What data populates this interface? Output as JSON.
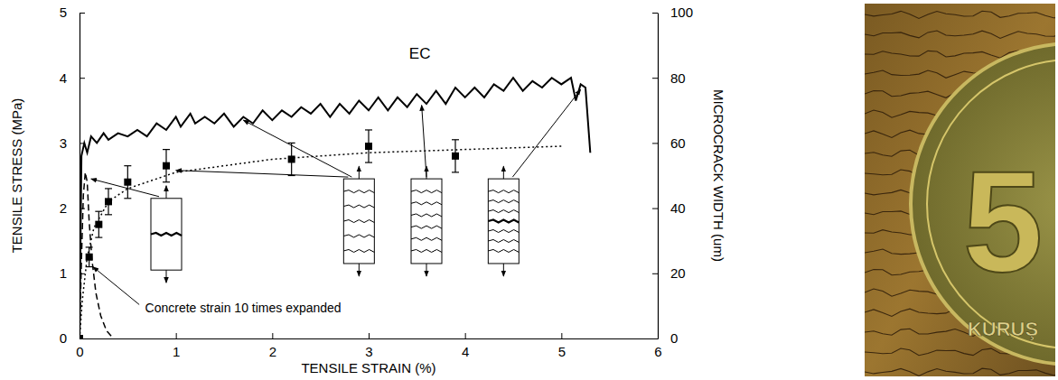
{
  "chart_data": {
    "type": "line",
    "x_label": "TENSILE STRAIN (%)",
    "y_label": "TENSILE STRESS (MPa)",
    "y2_label": "MICROCRACK WIDTH (um)",
    "xlim": [
      0,
      6
    ],
    "xticks": [
      0,
      1,
      2,
      3,
      4,
      5,
      6
    ],
    "ylim": [
      0,
      5
    ],
    "yticks": [
      0,
      1,
      2,
      3,
      4,
      5
    ],
    "y2lim": [
      0,
      100
    ],
    "y2ticks": [
      0,
      20,
      40,
      60,
      80,
      100
    ],
    "grid": false,
    "annotations": [
      "Concrete strain 10 times expanded"
    ],
    "series": [
      {
        "name": "EC",
        "type": "line",
        "color": "#000000",
        "line_style": "solid",
        "x": [
          0,
          0.02,
          0.05,
          0.08,
          0.12,
          0.18,
          0.25,
          0.3,
          0.4,
          0.5,
          0.6,
          0.7,
          0.8,
          0.9,
          1.0,
          1.05,
          1.15,
          1.2,
          1.3,
          1.4,
          1.5,
          1.6,
          1.7,
          1.8,
          1.9,
          2.0,
          2.1,
          2.2,
          2.3,
          2.4,
          2.5,
          2.6,
          2.7,
          2.8,
          2.9,
          3.0,
          3.1,
          3.2,
          3.3,
          3.4,
          3.5,
          3.6,
          3.7,
          3.8,
          3.9,
          4.0,
          4.1,
          4.2,
          4.3,
          4.4,
          4.5,
          4.6,
          4.7,
          4.8,
          4.9,
          5.0,
          5.1,
          5.15,
          5.2,
          5.25,
          5.3
        ],
        "values": [
          0,
          2.8,
          3.0,
          2.85,
          3.1,
          3.0,
          3.15,
          3.05,
          3.15,
          3.1,
          3.2,
          3.1,
          3.3,
          3.2,
          3.4,
          3.25,
          3.45,
          3.3,
          3.4,
          3.3,
          3.45,
          3.25,
          3.4,
          3.3,
          3.5,
          3.35,
          3.5,
          3.4,
          3.55,
          3.45,
          3.6,
          3.4,
          3.6,
          3.45,
          3.65,
          3.5,
          3.7,
          3.5,
          3.7,
          3.55,
          3.75,
          3.6,
          3.8,
          3.6,
          3.85,
          3.7,
          3.85,
          3.7,
          3.9,
          3.8,
          4.0,
          3.8,
          3.95,
          3.85,
          4.0,
          3.9,
          4.0,
          3.65,
          3.9,
          3.85,
          2.85
        ]
      },
      {
        "type": "line",
        "color": "#000000",
        "line_style": "dashed",
        "x": [
          0,
          0.02,
          0.04,
          0.06,
          0.08,
          0.1,
          0.13,
          0.17,
          0.22,
          0.28,
          0.35
        ],
        "values": [
          0,
          1.2,
          2.2,
          2.55,
          2.4,
          1.8,
          1.2,
          0.7,
          0.35,
          0.12,
          0
        ]
      },
      {
        "type": "scatter",
        "axis": "y2",
        "color": "#000000",
        "marker": "square",
        "x": [
          0,
          0.1,
          0.2,
          0.3,
          0.5,
          0.9,
          2.2,
          3.0,
          3.9
        ],
        "values": [
          0,
          25,
          35,
          42,
          48,
          53,
          55,
          59,
          56
        ],
        "errors": [
          0,
          3,
          4,
          4,
          5,
          5,
          5,
          5,
          5
        ]
      },
      {
        "type": "line",
        "axis": "y2",
        "color": "#000000",
        "line_style": "dotted",
        "x": [
          0,
          0.03,
          0.08,
          0.15,
          0.3,
          0.5,
          1,
          1.5,
          2,
          3,
          4,
          5
        ],
        "values": [
          0,
          12,
          25,
          34,
          42,
          46,
          51,
          53,
          55,
          57,
          58,
          59
        ]
      }
    ]
  },
  "photo": {
    "coin_texts": [
      "5",
      "KURUŞ"
    ]
  }
}
